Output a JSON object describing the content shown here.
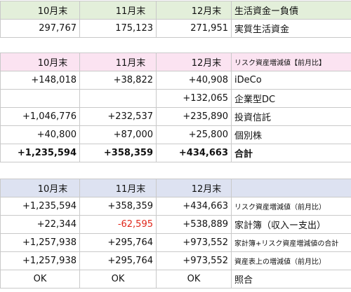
{
  "t1": {
    "header": [
      "10月末",
      "11月末",
      "12月末",
      "生活資金ー負債"
    ],
    "row": [
      "297,767",
      "175,123",
      "271,951",
      "実質生活資金"
    ]
  },
  "t2": {
    "header": [
      "10月末",
      "11月末",
      "12月末",
      "リスク資産増減値【前月比】"
    ],
    "rows": [
      [
        "+148,018",
        "+38,822",
        "+40,908",
        "iDeCo"
      ],
      [
        "",
        "",
        "+132,065",
        "企業型DC"
      ],
      [
        "+1,046,776",
        "+232,537",
        "+235,890",
        "投資信託"
      ],
      [
        "+40,800",
        "+87,000",
        "+25,800",
        "個別株"
      ],
      [
        "+1,235,594",
        "+358,359",
        "+434,663",
        "合計"
      ]
    ]
  },
  "t3": {
    "header": [
      "10月末",
      "11月末",
      "12月末",
      ""
    ],
    "rows": [
      [
        "+1,235,594",
        "+358,359",
        "+434,663",
        "リスク資産増減値（前月比）"
      ],
      [
        "+22,344",
        "-62,595",
        "+538,889",
        "家計簿（収入ー支出）"
      ],
      [
        "+1,257,938",
        "+295,764",
        "+973,552",
        "家計簿+リスク資産増減値の合計"
      ],
      [
        "+1,257,938",
        "+295,764",
        "+973,552",
        "資産表上の増減値（前月比）"
      ],
      [
        "OK",
        "OK",
        "OK",
        "照合"
      ]
    ]
  },
  "colors": {
    "green_header": "#e3efda",
    "pink_header": "#fbe3f1",
    "blue_header": "#dde2f1",
    "negative": "#e0271b",
    "border": "#c9c9c9"
  }
}
